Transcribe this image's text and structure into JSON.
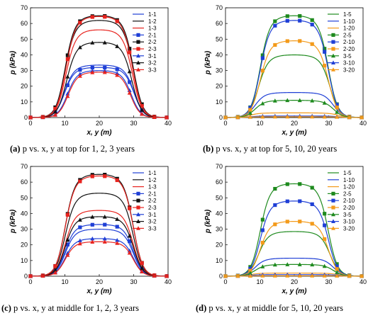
{
  "chart_data": [
    {
      "type": "line",
      "panel": "a",
      "caption": {
        "letter": "(a)",
        "text": "p vs. x, y at top for 1, 2, 3 years"
      },
      "xlabel": "x, y (m)",
      "ylabel": "p (kPa)",
      "xlim": [
        0,
        40
      ],
      "ylim": [
        0,
        70
      ],
      "xticks": [
        0,
        10,
        20,
        30,
        40
      ],
      "yticks": [
        0,
        10,
        20,
        30,
        40,
        50,
        60,
        70
      ],
      "legend": "top-right",
      "series": [
        {
          "name": "1-1",
          "color": "#1f3fd6",
          "marker": "none",
          "plateau": 33.5,
          "start": 9.8,
          "end": 30.2
        },
        {
          "name": "1-2",
          "color": "#111111",
          "marker": "none",
          "plateau": 62,
          "start": 10.0,
          "end": 30.0
        },
        {
          "name": "1-3",
          "color": "#e8231e",
          "marker": "none",
          "plateau": 56,
          "start": 10.2,
          "end": 29.8
        },
        {
          "name": "2-1",
          "color": "#1f3fd6",
          "marker": "square",
          "plateau": 32,
          "start": 9.8,
          "end": 30.2
        },
        {
          "name": "2-2",
          "color": "#111111",
          "marker": "square",
          "plateau": 65,
          "start": 10.0,
          "end": 30.0
        },
        {
          "name": "2-3",
          "color": "#e8231e",
          "marker": "square",
          "plateau": 64.5,
          "start": 10.2,
          "end": 29.8
        },
        {
          "name": "3-1",
          "color": "#1f3fd6",
          "marker": "triangle",
          "plateau": 30,
          "start": 10.6,
          "end": 29.4
        },
        {
          "name": "3-2",
          "color": "#111111",
          "marker": "triangle",
          "plateau": 48,
          "start": 10.4,
          "end": 29.6
        },
        {
          "name": "3-3",
          "color": "#e8231e",
          "marker": "triangle",
          "plateau": 29,
          "start": 10.8,
          "end": 29.2
        }
      ]
    },
    {
      "type": "line",
      "panel": "b",
      "caption": {
        "letter": "(b)",
        "text": "p vs. x, y at top for 5, 10, 20 years"
      },
      "xlabel": "x, y (m)",
      "ylabel": "p (kPa)",
      "xlim": [
        0,
        40
      ],
      "ylim": [
        0,
        70
      ],
      "xticks": [
        0,
        10,
        20,
        30,
        40
      ],
      "yticks": [
        0,
        10,
        20,
        30,
        40,
        50,
        60,
        70
      ],
      "legend": "top-right",
      "series": [
        {
          "name": "1-5",
          "color": "#1e8a1e",
          "marker": "none",
          "plateau": 40,
          "start": 9.5,
          "end": 30.5
        },
        {
          "name": "1-10",
          "color": "#1f3fd6",
          "marker": "none",
          "plateau": 16,
          "start": 8.5,
          "end": 31.5
        },
        {
          "name": "1-20",
          "color": "#f39a1a",
          "marker": "none",
          "plateau": 3,
          "start": 7.0,
          "end": 33.0
        },
        {
          "name": "2-5",
          "color": "#1e8a1e",
          "marker": "square",
          "plateau": 65,
          "start": 10.0,
          "end": 30.0
        },
        {
          "name": "2-10",
          "color": "#1f3fd6",
          "marker": "square",
          "plateau": 62,
          "start": 10.0,
          "end": 30.0
        },
        {
          "name": "2-20",
          "color": "#f39a1a",
          "marker": "square",
          "plateau": 49,
          "start": 10.0,
          "end": 30.0
        },
        {
          "name": "3-5",
          "color": "#1e8a1e",
          "marker": "triangle",
          "plateau": 11,
          "start": 8.5,
          "end": 31.5
        },
        {
          "name": "3-10",
          "color": "#1f3fd6",
          "marker": "triangle",
          "plateau": 1,
          "start": 7.0,
          "end": 33.0
        },
        {
          "name": "3-20",
          "color": "#f39a1a",
          "marker": "triangle",
          "plateau": 0.5,
          "start": 6.0,
          "end": 34.0
        }
      ]
    },
    {
      "type": "line",
      "panel": "c",
      "caption": {
        "letter": "(c)",
        "text": "p vs. x, y at middle for 1, 2, 3 years"
      },
      "xlabel": "x, y (m)",
      "ylabel": "p (kPa)",
      "xlim": [
        0,
        40
      ],
      "ylim": [
        0,
        70
      ],
      "xticks": [
        0,
        10,
        20,
        30,
        40
      ],
      "yticks": [
        0,
        10,
        20,
        30,
        40,
        50,
        60,
        70
      ],
      "legend": "top-right",
      "series": [
        {
          "name": "1-1",
          "color": "#1f3fd6",
          "marker": "none",
          "plateau": 30,
          "start": 10.0,
          "end": 30.0
        },
        {
          "name": "1-2",
          "color": "#111111",
          "marker": "none",
          "plateau": 53,
          "start": 10.0,
          "end": 30.0
        },
        {
          "name": "1-3",
          "color": "#e8231e",
          "marker": "none",
          "plateau": 42,
          "start": 10.0,
          "end": 30.0
        },
        {
          "name": "2-1",
          "color": "#1f3fd6",
          "marker": "square",
          "plateau": 33,
          "start": 10.0,
          "end": 30.0
        },
        {
          "name": "2-2",
          "color": "#111111",
          "marker": "square",
          "plateau": 65,
          "start": 10.0,
          "end": 30.0
        },
        {
          "name": "2-3",
          "color": "#e8231e",
          "marker": "square",
          "plateau": 64,
          "start": 10.0,
          "end": 30.0
        },
        {
          "name": "3-1",
          "color": "#1f3fd6",
          "marker": "triangle",
          "plateau": 24,
          "start": 10.0,
          "end": 30.0
        },
        {
          "name": "3-2",
          "color": "#111111",
          "marker": "triangle",
          "plateau": 38,
          "start": 10.0,
          "end": 30.0
        },
        {
          "name": "3-3",
          "color": "#e8231e",
          "marker": "triangle",
          "plateau": 22,
          "start": 10.0,
          "end": 30.0
        }
      ]
    },
    {
      "type": "line",
      "panel": "d",
      "caption": {
        "letter": "(d)",
        "text": "p vs. x, y at middle for 5, 10, 20 years"
      },
      "xlabel": "x, y (m)",
      "ylabel": "p (kPa)",
      "xlim": [
        0,
        40
      ],
      "ylim": [
        0,
        70
      ],
      "xticks": [
        0,
        10,
        20,
        30,
        40
      ],
      "yticks": [
        0,
        10,
        20,
        30,
        40,
        50,
        60,
        70
      ],
      "legend": "top-right",
      "series": [
        {
          "name": "1-5",
          "color": "#1e8a1e",
          "marker": "none",
          "plateau": 28.5,
          "start": 9.5,
          "end": 30.5
        },
        {
          "name": "1-10",
          "color": "#1f3fd6",
          "marker": "none",
          "plateau": 11.5,
          "start": 8.5,
          "end": 31.5
        },
        {
          "name": "1-20",
          "color": "#f39a1a",
          "marker": "none",
          "plateau": 2,
          "start": 7.0,
          "end": 33.0
        },
        {
          "name": "2-5",
          "color": "#1e8a1e",
          "marker": "square",
          "plateau": 59,
          "start": 10.0,
          "end": 30.0
        },
        {
          "name": "2-10",
          "color": "#1f3fd6",
          "marker": "square",
          "plateau": 48,
          "start": 10.0,
          "end": 30.0
        },
        {
          "name": "2-20",
          "color": "#f39a1a",
          "marker": "square",
          "plateau": 35,
          "start": 10.0,
          "end": 30.0
        },
        {
          "name": "3-5",
          "color": "#1e8a1e",
          "marker": "triangle",
          "plateau": 7.5,
          "start": 8.5,
          "end": 31.5
        },
        {
          "name": "3-10",
          "color": "#1f3fd6",
          "marker": "triangle",
          "plateau": 1,
          "start": 7.0,
          "end": 33.0
        },
        {
          "name": "3-20",
          "color": "#f39a1a",
          "marker": "triangle",
          "plateau": 0.3,
          "start": 6.0,
          "end": 34.0
        }
      ]
    }
  ]
}
